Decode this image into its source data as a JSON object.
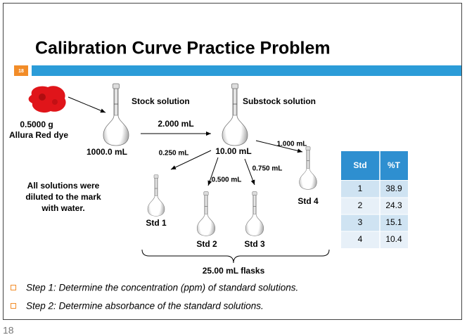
{
  "slide": {
    "title": "Calibration Curve Practice Problem",
    "number": "18",
    "footer_number": "18"
  },
  "diagram": {
    "dye": {
      "mass": "0.5000 g",
      "name": "Allura Red dye"
    },
    "stock": {
      "label": "Stock solution",
      "volume": "1000.0 mL"
    },
    "substock": {
      "label": "Substock solution",
      "volume": "10.00 mL"
    },
    "transfer": "2.000 mL",
    "aliquots": [
      "0.250 mL",
      "0.500 mL",
      "0.750 mL",
      "1.000 mL"
    ],
    "standards": [
      "Std 1",
      "Std 2",
      "Std 3",
      "Std 4"
    ],
    "note": [
      "All solutions were",
      "diluted to the mark",
      "with water."
    ],
    "flasks": "25.00 mL flasks"
  },
  "table": {
    "header": [
      "Std",
      "%T"
    ],
    "rows": [
      [
        "1",
        "38.9"
      ],
      [
        "2",
        "24.3"
      ],
      [
        "3",
        "15.1"
      ],
      [
        "4",
        "10.4"
      ]
    ]
  },
  "bullets": [
    "Step 1: Determine the concentration (ppm) of standard solutions.",
    "Step 2: Determine absorbance of the standard solutions."
  ]
}
